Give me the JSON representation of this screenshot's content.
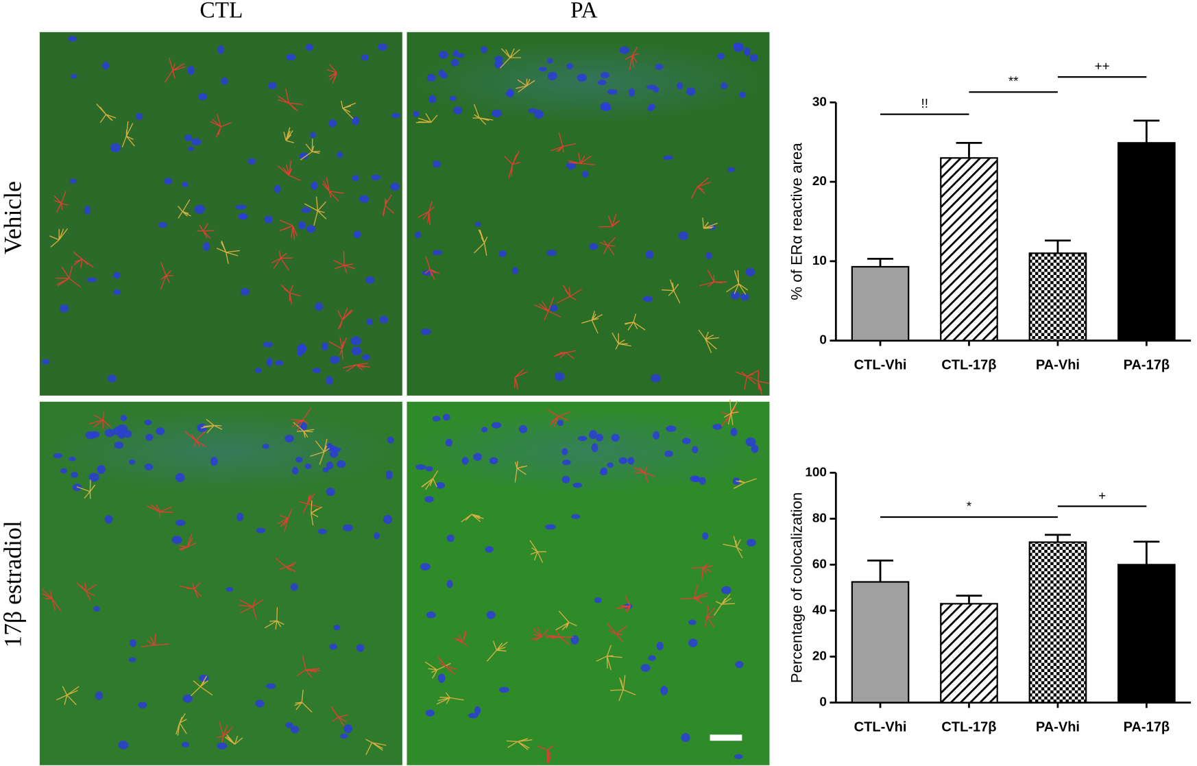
{
  "panels": {
    "columns": [
      "CTL",
      "PA"
    ],
    "rows": [
      "Vehicle",
      "17β estradiol"
    ]
  },
  "chart_data": [
    {
      "type": "bar",
      "y_label": "% of ERα reactive area",
      "categories": [
        "CTL-Vhi",
        "CTL-17β",
        "PA-Vhi",
        "PA-17β"
      ],
      "values": [
        9.3,
        23.0,
        11.0,
        24.9
      ],
      "errors": [
        1.0,
        1.9,
        1.6,
        2.8
      ],
      "fills": [
        "#a0a0a0",
        "hatch",
        "checker",
        "#000000"
      ],
      "ylim": [
        0,
        30
      ],
      "yticks": [
        0,
        10,
        20,
        30
      ],
      "annotations": [
        {
          "text": "!!",
          "x": [
            0,
            1
          ],
          "y": 28.5
        },
        {
          "text": "**",
          "x": [
            1,
            2
          ],
          "y": 31.3
        },
        {
          "text": "++",
          "x": [
            2,
            3
          ],
          "y": 33.2
        }
      ]
    },
    {
      "type": "bar",
      "y_label": "Percentage of colocalization",
      "categories": [
        "CTL-Vhi",
        "CTL-17β",
        "PA-Vhi",
        "PA-17β"
      ],
      "values": [
        52.5,
        43.0,
        69.8,
        60.0
      ],
      "errors": [
        9.3,
        3.5,
        3.2,
        10.0
      ],
      "fills": [
        "#a0a0a0",
        "hatch",
        "checker",
        "#000000"
      ],
      "ylim": [
        0,
        100
      ],
      "yticks": [
        0,
        20,
        40,
        60,
        80,
        100
      ],
      "annotations": [
        {
          "text": "*",
          "x": [
            0,
            2
          ],
          "y": 80.7
        },
        {
          "text": "+",
          "x": [
            2,
            3
          ],
          "y": 85.4
        }
      ]
    }
  ]
}
